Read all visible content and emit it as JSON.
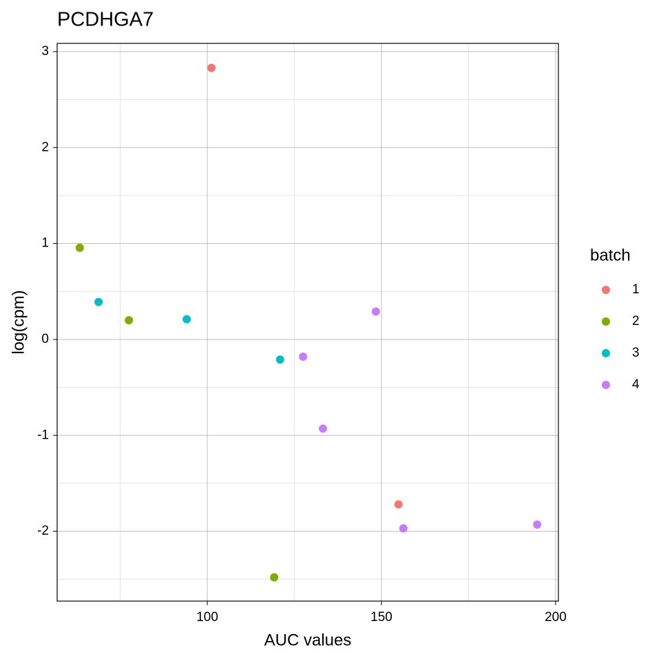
{
  "chart_data": {
    "type": "scatter",
    "title": "PCDHGA7",
    "x_label": "AUC values",
    "y_label": "log(cpm)",
    "legend_title": "batch",
    "legend_position": "right",
    "xlim": [
      56.9,
      200.8
    ],
    "ylim": [
      -2.728,
      3.086
    ],
    "xticks": [
      100,
      150,
      200
    ],
    "yticks": [
      -2,
      -1,
      0,
      1,
      2,
      3
    ],
    "x_minor_ticks": [
      75,
      125,
      175
    ],
    "y_minor_ticks": [
      -2.5,
      -1.5,
      -0.5,
      0.5,
      1.5,
      2.5
    ],
    "grid": true,
    "series": [
      {
        "name": "1",
        "color": "#F8766D",
        "x": [
          101.2,
          154.9
        ],
        "y": [
          2.83,
          -1.72
        ]
      },
      {
        "name": "2",
        "color": "#7CAE00",
        "x": [
          63.4,
          77.5,
          119.2
        ],
        "y": [
          0.955,
          0.2,
          -2.48
        ]
      },
      {
        "name": "3",
        "color": "#00BFC4",
        "x": [
          68.8,
          94.1,
          120.9
        ],
        "y": [
          0.39,
          0.21,
          -0.21
        ]
      },
      {
        "name": "4",
        "color": "#C77CFF",
        "x": [
          127.5,
          133.2,
          148.4,
          156.3,
          194.7
        ],
        "y": [
          -0.18,
          -0.93,
          0.29,
          -1.97,
          -1.93
        ]
      }
    ]
  }
}
